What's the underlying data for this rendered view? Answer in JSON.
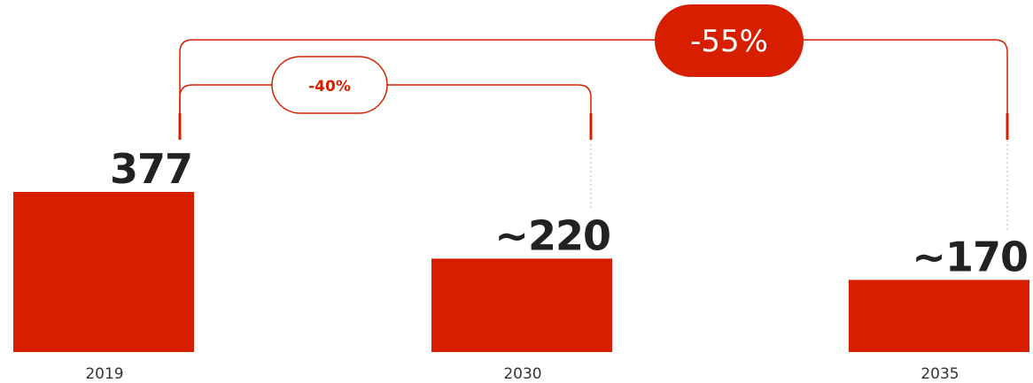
{
  "chart_data": {
    "type": "bar",
    "categories": [
      "2019",
      "2030",
      "2035"
    ],
    "values": [
      377,
      220,
      170
    ],
    "value_labels": [
      "377",
      "~220",
      "~170"
    ],
    "title": "",
    "xlabel": "",
    "ylabel": "",
    "ylim": [
      0,
      377
    ],
    "grid": false,
    "annotations": [
      {
        "from": "2019",
        "to": "2030",
        "label": "-40%",
        "style": "outlined"
      },
      {
        "from": "2019",
        "to": "2035",
        "label": "-55%",
        "style": "filled"
      }
    ]
  },
  "colors": {
    "bar": "#d71f00",
    "accent": "#d71f00",
    "text": "#222222"
  }
}
